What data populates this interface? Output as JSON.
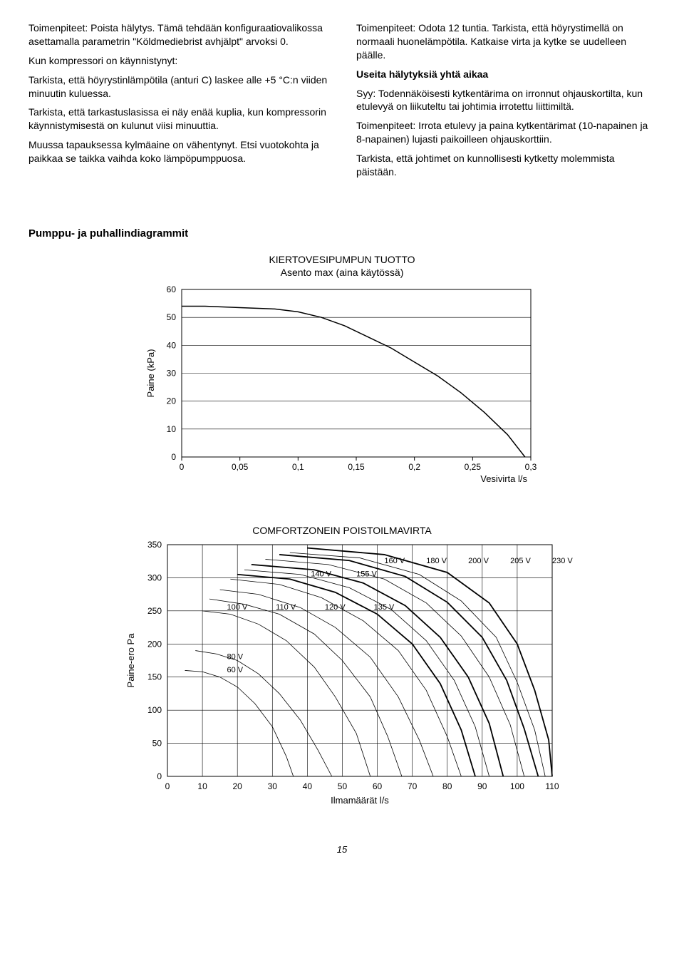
{
  "left_col": {
    "p1": "Toimenpiteet: Poista hälytys. Tämä tehdään konfiguraatiovalikossa asettamalla parametrin \"Köldmediebrist avhjälpt\" arvoksi 0.",
    "p2": "Kun kompressori on käynnistynyt:",
    "p3": "Tarkista, että höyrystinlämpötila (anturi C) laskee alle +5 °C:n viiden minuutin kuluessa.",
    "p4": "Tarkista, että tarkastuslasissa ei näy enää kuplia, kun kompressorin käynnistymisestä on kulunut viisi minuuttia.",
    "p5": "Muussa tapauksessa kylmäaine on vähentynyt. Etsi vuotokohta ja paikkaa se taikka vaihda koko lämpöpumppuosa."
  },
  "right_col": {
    "p1": "Toimenpiteet: Odota 12 tuntia. Tarkista, että höyrystimellä on normaali huonelämpötila. Katkaise virta ja kytke se uudelleen päälle.",
    "h": "Useita hälytyksiä yhtä aikaa",
    "p2": "Syy: Todennäköisesti kytkentärima on irronnut ohjauskortilta, kun etulevyä on liikuteltu tai johtimia irrotettu liittimiltä.",
    "p3": "Toimenpiteet: Irrota etulevy ja paina kytkentärimat (10-napainen ja 8-napainen) lujasti paikoilleen ohjauskorttiin.",
    "p4": "Tarkista, että johtimet on kunnollisesti kytketty molemmista päistään."
  },
  "diagrams_heading": "Pumppu- ja puhallindiagrammit",
  "chart1": {
    "title": "KIERTOVESIPUMPUN TUOTTO",
    "subtitle": "Asento max (aina käytössä)",
    "xlabel": "Vesivirta l/s",
    "ylabel": "Paine (kPa)",
    "xlim": [
      0,
      0.3
    ],
    "xtick_step": 0.05,
    "ylim": [
      0,
      60
    ],
    "ytick_step": 10,
    "line_color": "#000000",
    "line_width": 1.5,
    "grid_color": "#000000",
    "points": [
      [
        0,
        54
      ],
      [
        0.02,
        54
      ],
      [
        0.05,
        53.5
      ],
      [
        0.08,
        53
      ],
      [
        0.1,
        52
      ],
      [
        0.12,
        50
      ],
      [
        0.14,
        47
      ],
      [
        0.16,
        43
      ],
      [
        0.18,
        39
      ],
      [
        0.2,
        34
      ],
      [
        0.22,
        29
      ],
      [
        0.24,
        23
      ],
      [
        0.26,
        16
      ],
      [
        0.28,
        8
      ],
      [
        0.295,
        0
      ]
    ]
  },
  "chart2": {
    "title": "COMFORTZONEIN POISTOILMAVIRTA",
    "xlabel": "Ilmamäärät l/s",
    "ylabel": "Paine-ero Pa",
    "xlim": [
      0,
      110
    ],
    "xtick_step": 10,
    "ylim": [
      0,
      350
    ],
    "ytick_step": 50,
    "grid_color": "#000000",
    "thin_width": 0.8,
    "thick_width": 1.8,
    "curves": [
      {
        "label": "60 V",
        "lx": 17,
        "ly": 157,
        "w": "thin",
        "pts": [
          [
            5,
            160
          ],
          [
            10,
            158
          ],
          [
            15,
            150
          ],
          [
            20,
            135
          ],
          [
            25,
            110
          ],
          [
            30,
            75
          ],
          [
            34,
            30
          ],
          [
            36,
            0
          ]
        ]
      },
      {
        "label": "80 V",
        "lx": 17,
        "ly": 177,
        "w": "thin",
        "pts": [
          [
            8,
            190
          ],
          [
            14,
            185
          ],
          [
            20,
            175
          ],
          [
            26,
            155
          ],
          [
            32,
            125
          ],
          [
            38,
            85
          ],
          [
            43,
            40
          ],
          [
            47,
            0
          ]
        ]
      },
      {
        "label": "100 V",
        "lx": 17,
        "ly": 252,
        "w": "thin",
        "pts": [
          [
            10,
            250
          ],
          [
            18,
            245
          ],
          [
            26,
            230
          ],
          [
            34,
            205
          ],
          [
            42,
            165
          ],
          [
            48,
            120
          ],
          [
            54,
            65
          ],
          [
            58,
            0
          ]
        ]
      },
      {
        "label": "110 V",
        "lx": 31,
        "ly": 252,
        "w": "thin",
        "pts": [
          [
            12,
            268
          ],
          [
            22,
            260
          ],
          [
            32,
            245
          ],
          [
            42,
            215
          ],
          [
            50,
            175
          ],
          [
            58,
            120
          ],
          [
            63,
            60
          ],
          [
            67,
            0
          ]
        ]
      },
      {
        "label": "120 V",
        "lx": 45,
        "ly": 252,
        "w": "thin",
        "pts": [
          [
            15,
            282
          ],
          [
            26,
            275
          ],
          [
            38,
            255
          ],
          [
            48,
            225
          ],
          [
            58,
            180
          ],
          [
            66,
            120
          ],
          [
            72,
            55
          ],
          [
            76,
            0
          ]
        ]
      },
      {
        "label": "135 V",
        "lx": 59,
        "ly": 252,
        "w": "thin",
        "pts": [
          [
            18,
            298
          ],
          [
            32,
            290
          ],
          [
            44,
            270
          ],
          [
            56,
            235
          ],
          [
            66,
            190
          ],
          [
            74,
            130
          ],
          [
            80,
            60
          ],
          [
            84,
            0
          ]
        ]
      },
      {
        "label": "140 V",
        "lx": 41,
        "ly": 302,
        "w": "thick",
        "pts": [
          [
            20,
            305
          ],
          [
            35,
            298
          ],
          [
            48,
            278
          ],
          [
            60,
            245
          ],
          [
            70,
            200
          ],
          [
            78,
            140
          ],
          [
            84,
            70
          ],
          [
            88,
            0
          ]
        ]
      },
      {
        "label": "155 V",
        "lx": 54,
        "ly": 302,
        "w": "thin",
        "pts": [
          [
            22,
            312
          ],
          [
            38,
            305
          ],
          [
            52,
            285
          ],
          [
            64,
            252
          ],
          [
            74,
            205
          ],
          [
            82,
            145
          ],
          [
            88,
            75
          ],
          [
            92,
            0
          ]
        ]
      },
      {
        "label": "160 V",
        "lx": 62,
        "ly": 322,
        "w": "thick",
        "pts": [
          [
            24,
            320
          ],
          [
            42,
            312
          ],
          [
            56,
            292
          ],
          [
            68,
            258
          ],
          [
            78,
            210
          ],
          [
            86,
            150
          ],
          [
            92,
            80
          ],
          [
            96,
            0
          ]
        ]
      },
      {
        "label": "180 V",
        "lx": 74,
        "ly": 322,
        "w": "thin",
        "pts": [
          [
            28,
            328
          ],
          [
            46,
            320
          ],
          [
            62,
            298
          ],
          [
            74,
            262
          ],
          [
            84,
            212
          ],
          [
            92,
            150
          ],
          [
            98,
            78
          ],
          [
            102,
            0
          ]
        ]
      },
      {
        "label": "200 V",
        "lx": 86,
        "ly": 322,
        "w": "thick",
        "pts": [
          [
            32,
            335
          ],
          [
            52,
            326
          ],
          [
            68,
            302
          ],
          [
            80,
            263
          ],
          [
            90,
            210
          ],
          [
            97,
            145
          ],
          [
            102,
            72
          ],
          [
            106,
            0
          ]
        ]
      },
      {
        "label": "205 V",
        "lx": 98,
        "ly": 322,
        "w": "thin",
        "pts": [
          [
            35,
            338
          ],
          [
            55,
            330
          ],
          [
            72,
            305
          ],
          [
            84,
            265
          ],
          [
            94,
            210
          ],
          [
            100,
            142
          ],
          [
            105,
            70
          ],
          [
            108,
            0
          ]
        ]
      },
      {
        "label": "230 V",
        "lx": 110,
        "ly": 322,
        "w": "thick",
        "pts": [
          [
            40,
            345
          ],
          [
            62,
            335
          ],
          [
            80,
            308
          ],
          [
            92,
            262
          ],
          [
            100,
            200
          ],
          [
            105,
            130
          ],
          [
            109,
            55
          ],
          [
            110,
            0
          ]
        ]
      }
    ]
  },
  "page_number": "15"
}
